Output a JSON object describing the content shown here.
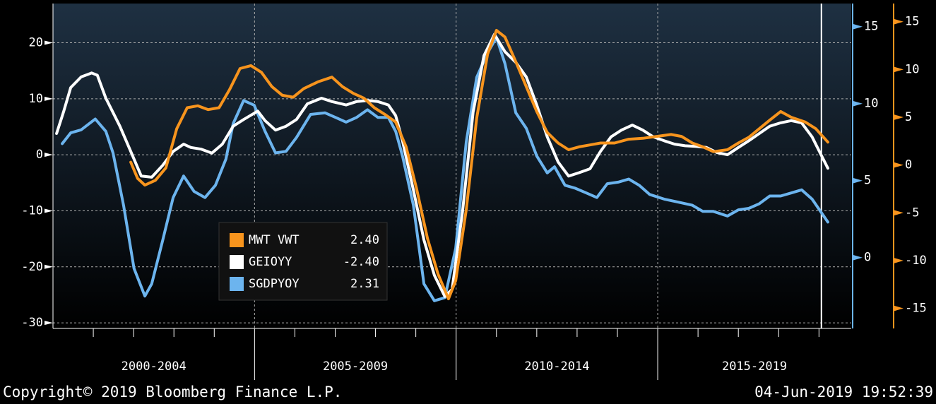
{
  "chart_data": {
    "type": "line",
    "xlim": [
      2000,
      2019.8
    ],
    "xticks": [
      2005,
      2010,
      2015
    ],
    "xminorticks": [
      2001,
      2002,
      2003,
      2004,
      2006,
      2007,
      2008,
      2009,
      2011,
      2012,
      2013,
      2014,
      2016,
      2017,
      2018,
      2019
    ],
    "period_labels": [
      "2000-2004",
      "2005-2009",
      "2010-2014",
      "2015-2019"
    ],
    "now_line": 2019.06,
    "ylim": [
      -31,
      27
    ],
    "yticks": [
      20,
      10,
      0,
      -10,
      -20,
      -30
    ],
    "y2lim": [
      -4.6,
      16.5
    ],
    "y2ticks": [
      15,
      10,
      5,
      0
    ],
    "y3lim": [
      -17.1,
      16.9
    ],
    "y3ticks": [
      15,
      10,
      5,
      0,
      -5,
      -10,
      -15
    ],
    "grid": true,
    "series": [
      {
        "name": "MWT VWT",
        "legend_value": "2.40",
        "color": "#f7941d",
        "axis": "y3",
        "x": [
          2001.93,
          2002.1,
          2002.28,
          2002.54,
          2002.8,
          2003.07,
          2003.33,
          2003.59,
          2003.85,
          2004.12,
          2004.38,
          2004.64,
          2004.91,
          2005.17,
          2005.43,
          2005.69,
          2005.96,
          2006.22,
          2006.57,
          2006.92,
          2007.18,
          2007.45,
          2007.71,
          2007.97,
          2008.23,
          2008.5,
          2008.76,
          2009.02,
          2009.29,
          2009.55,
          2009.81,
          2009.99,
          2010.25,
          2010.51,
          2010.78,
          2011.0,
          2011.21,
          2011.48,
          2011.74,
          2012.0,
          2012.26,
          2012.53,
          2012.79,
          2013.05,
          2013.32,
          2013.58,
          2013.93,
          2014.28,
          2014.63,
          2014.98,
          2015.33,
          2015.59,
          2015.86,
          2016.12,
          2016.38,
          2016.73,
          2017.0,
          2017.26,
          2017.52,
          2017.78,
          2018.05,
          2018.31,
          2018.66,
          2018.92,
          2019.22
        ],
        "values": [
          0.3,
          -1.4,
          -2.1,
          -1.6,
          -0.3,
          3.8,
          6,
          6.2,
          5.8,
          6,
          7.9,
          10.1,
          10.4,
          9.7,
          8.2,
          7.3,
          7.1,
          8,
          8.7,
          9.2,
          8.2,
          7.5,
          7,
          6,
          5.3,
          4.5,
          1.9,
          -2.5,
          -7.7,
          -11.4,
          -14,
          -12.1,
          -4.7,
          4.9,
          11.6,
          14.1,
          13.4,
          10.8,
          8.2,
          5.6,
          3.4,
          2.3,
          1.6,
          1.9,
          2.1,
          2.3,
          2.3,
          2.7,
          2.8,
          3,
          3.2,
          3,
          2.3,
          1.9,
          1.4,
          1.6,
          2.3,
          2.9,
          3.8,
          4.7,
          5.6,
          5,
          4.5,
          3.8,
          2.4
        ]
      },
      {
        "name": "GEIOYY",
        "legend_value": "-2.40",
        "color": "#ffffff",
        "axis": "y",
        "x": [
          2000.09,
          2000.26,
          2000.44,
          2000.7,
          2000.96,
          2001.1,
          2001.31,
          2001.66,
          2001.93,
          2002.19,
          2002.45,
          2002.72,
          2002.98,
          2003.24,
          2003.42,
          2003.68,
          2003.94,
          2004.2,
          2004.47,
          2004.73,
          2005.08,
          2005.26,
          2005.52,
          2005.78,
          2006.04,
          2006.31,
          2006.66,
          2006.92,
          2007.27,
          2007.53,
          2007.8,
          2008.06,
          2008.32,
          2008.5,
          2008.67,
          2008.94,
          2009.2,
          2009.46,
          2009.72,
          2009.9,
          2010.16,
          2010.42,
          2010.69,
          2010.95,
          2011.21,
          2011.48,
          2011.74,
          2012.0,
          2012.26,
          2012.53,
          2012.79,
          2013.05,
          2013.32,
          2013.58,
          2013.84,
          2014.1,
          2014.37,
          2014.63,
          2014.89,
          2015.16,
          2015.42,
          2015.68,
          2015.94,
          2016.21,
          2016.47,
          2016.73,
          2017.0,
          2017.26,
          2017.52,
          2017.78,
          2018.05,
          2018.31,
          2018.57,
          2018.83,
          2019.01,
          2019.22
        ],
        "values": [
          3.8,
          7.6,
          12,
          13.9,
          14.6,
          14.2,
          10.1,
          5.1,
          0.6,
          -3.8,
          -4,
          -1.9,
          0.6,
          1.9,
          1.3,
          1,
          0.3,
          1.9,
          5.1,
          6.3,
          7.8,
          6.1,
          4.4,
          5.1,
          6.3,
          9.1,
          10.1,
          9.5,
          8.9,
          9.5,
          9.7,
          9.5,
          8.9,
          7,
          2.5,
          -6.3,
          -15.2,
          -21.5,
          -25.3,
          -24,
          -10.1,
          7.6,
          17.7,
          21.5,
          18.4,
          16.5,
          13.9,
          8.9,
          3.2,
          -1.3,
          -3.8,
          -3.2,
          -2.5,
          0.6,
          3.2,
          4.4,
          5.3,
          4.4,
          3.2,
          2.5,
          1.9,
          1.6,
          1.5,
          1.3,
          0.4,
          0,
          1.3,
          2.5,
          3.8,
          5.1,
          5.7,
          6.1,
          5.7,
          3.2,
          0.6,
          -2.4
        ]
      },
      {
        "name": "SGDPYOY",
        "legend_value": "2.31",
        "color": "#6cb4ee",
        "axis": "y2",
        "x": [
          2000.23,
          2000.44,
          2000.7,
          2001.05,
          2001.31,
          2001.49,
          2001.75,
          2002.01,
          2002.28,
          2002.45,
          2002.72,
          2002.98,
          2003.24,
          2003.5,
          2003.77,
          2004.03,
          2004.29,
          2004.47,
          2004.73,
          2004.99,
          2005.26,
          2005.52,
          2005.78,
          2006.04,
          2006.39,
          2006.75,
          2007.01,
          2007.27,
          2007.53,
          2007.8,
          2008.06,
          2008.32,
          2008.5,
          2008.67,
          2008.94,
          2009.2,
          2009.46,
          2009.72,
          2009.99,
          2010.25,
          2010.51,
          2010.78,
          2011.0,
          2011.21,
          2011.48,
          2011.74,
          2012.0,
          2012.26,
          2012.44,
          2012.7,
          2012.96,
          2013.23,
          2013.49,
          2013.75,
          2014.02,
          2014.28,
          2014.54,
          2014.8,
          2015.16,
          2015.51,
          2015.86,
          2016.12,
          2016.38,
          2016.73,
          2017.0,
          2017.26,
          2017.52,
          2017.78,
          2018.05,
          2018.31,
          2018.57,
          2018.83,
          2019.22
        ],
        "values": [
          7.4,
          8.1,
          8.3,
          9,
          8.2,
          6.8,
          3.4,
          -0.7,
          -2.5,
          -1.7,
          1.1,
          3.9,
          5.3,
          4.3,
          3.9,
          4.7,
          6.4,
          8.7,
          10.2,
          9.9,
          8.2,
          6.8,
          6.9,
          7.8,
          9.3,
          9.4,
          9.1,
          8.8,
          9.1,
          9.6,
          9.1,
          9.1,
          8.2,
          6.6,
          3.4,
          -1.7,
          -2.8,
          -2.6,
          0.6,
          7.5,
          11.7,
          13.3,
          14.3,
          12.6,
          9.4,
          8.4,
          6.6,
          5.5,
          5.9,
          4.7,
          4.5,
          4.2,
          3.9,
          4.8,
          4.9,
          5.1,
          4.7,
          4.1,
          3.8,
          3.6,
          3.4,
          3,
          3,
          2.7,
          3.1,
          3.2,
          3.5,
          4,
          4,
          4.2,
          4.4,
          3.8,
          2.31
        ]
      }
    ],
    "footer_left": "Copyright© 2019 Bloomberg Finance L.P.",
    "footer_right": "04-Jun-2019 19:52:39"
  }
}
